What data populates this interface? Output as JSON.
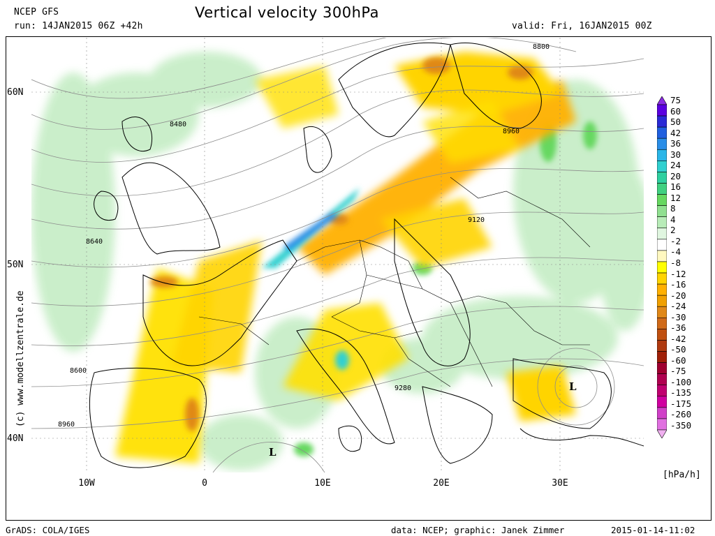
{
  "header": {
    "model": "NCEP GFS",
    "run": "run: 14JAN2015 06Z +42h",
    "title": "Vertical velocity 300hPa",
    "valid": "valid: Fri, 16JAN2015 00Z"
  },
  "axes": {
    "lat_labels": [
      "60N",
      "50N",
      "40N"
    ],
    "lon_labels": [
      "10W",
      "0",
      "10E",
      "20E",
      "30E"
    ]
  },
  "contours": {
    "labels": [
      "8800",
      "8480",
      "8960",
      "9120",
      "8640",
      "8600",
      "9280",
      "8960"
    ]
  },
  "pressure_centers": [
    "L",
    "L"
  ],
  "credit": "(c) www.modellzentrale.de",
  "legend": {
    "levels": [
      "75",
      "60",
      "50",
      "42",
      "36",
      "30",
      "24",
      "20",
      "16",
      "12",
      "8",
      "4",
      "2",
      "-2",
      "-4",
      "-8",
      "-12",
      "-16",
      "-20",
      "-24",
      "-30",
      "-36",
      "-42",
      "-50",
      "-60",
      "-75",
      "-100",
      "-135",
      "-175",
      "-260",
      "-350"
    ],
    "colors": [
      "#8a2be2",
      "#5a00e0",
      "#2a2ad6",
      "#2060e0",
      "#2a8ee8",
      "#2ab6e8",
      "#30d0d0",
      "#2ed0a0",
      "#40d080",
      "#66d860",
      "#90e090",
      "#b8ecb8",
      "#e0f6e0",
      "#ffffff",
      "#fff8c0",
      "#ffff00",
      "#ffd400",
      "#ffb000",
      "#f0a000",
      "#e08818",
      "#d06a18",
      "#c05010",
      "#b03a10",
      "#a02008",
      "#a00030",
      "#b00050",
      "#c00070",
      "#d000a0",
      "#d040c8",
      "#e070e0",
      "#f0b0f0"
    ],
    "unit": "[hPa/h]"
  },
  "footer": {
    "left": "GrADS: COLA/IGES",
    "mid": "data: NCEP; graphic: Janek Zimmer",
    "right": "2015-01-14-11:02"
  }
}
